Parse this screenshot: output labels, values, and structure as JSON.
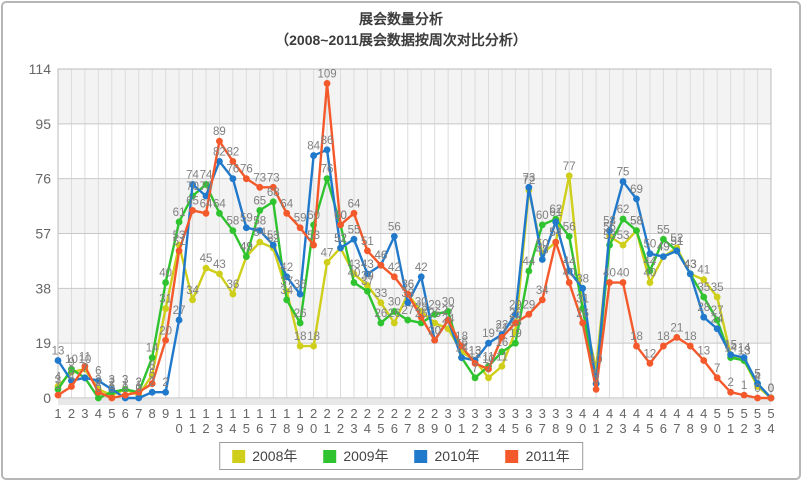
{
  "window": {
    "background": "#ffffff",
    "frame_border_color": "#b6b6b6"
  },
  "chart": {
    "title": "展会数量分析",
    "subtitle": "（2008~2011展会数据按周次对比分析）"
  },
  "chart_data": {
    "type": "line",
    "title": "展会数量分析",
    "subtitle": "（2008~2011展会数据按周次对比分析）",
    "xlabel": "",
    "ylabel": "",
    "x": [
      1,
      2,
      3,
      4,
      5,
      6,
      7,
      8,
      9,
      10,
      11,
      12,
      13,
      14,
      15,
      16,
      17,
      18,
      19,
      20,
      21,
      22,
      23,
      24,
      25,
      26,
      27,
      28,
      29,
      30,
      31,
      32,
      33,
      34,
      35,
      36,
      37,
      38,
      39,
      40,
      41,
      42,
      43,
      44,
      45,
      46,
      47,
      48,
      49,
      50,
      51,
      52,
      53,
      54
    ],
    "ylim": [
      0,
      114
    ],
    "y_ticks": [
      0,
      19,
      38,
      57,
      76,
      95,
      114
    ],
    "grid": true,
    "band_fill": "#f3f3f3",
    "gridline_color_v": "#dcdcdc",
    "gridline_color_h": "#c8c8c8",
    "axis_text_color": "#666666",
    "data_label_color": "#808080",
    "legend_position": "bottom",
    "series": [
      {
        "name": "2008年",
        "color": "#cfcf1b",
        "values": [
          4,
          9,
          10,
          3,
          1,
          3,
          1,
          8,
          31,
          53,
          34,
          45,
          43,
          36,
          49,
          54,
          52,
          37,
          18,
          18,
          47,
          52,
          43,
          39,
          33,
          26,
          36,
          30,
          26,
          24,
          16,
          13,
          7,
          11,
          23,
          72,
          50,
          54,
          77,
          31,
          10,
          56,
          53,
          58,
          40,
          49,
          52,
          43,
          41,
          35,
          15,
          13,
          4,
          0
        ]
      },
      {
        "name": "2009年",
        "color": "#2fc42f",
        "values": [
          3,
          10,
          7,
          0,
          2,
          3,
          2,
          14,
          40,
          61,
          70,
          74,
          64,
          58,
          49,
          65,
          68,
          34,
          26,
          60,
          76,
          60,
          40,
          37,
          26,
          30,
          27,
          26,
          29,
          30,
          14,
          7,
          11,
          16,
          19,
          44,
          60,
          62,
          56,
          31,
          5,
          53,
          62,
          58,
          44,
          55,
          51,
          43,
          35,
          27,
          14,
          13,
          5,
          0
        ]
      },
      {
        "name": "2010年",
        "color": "#2179cb",
        "values": [
          13,
          6,
          7,
          6,
          3,
          0,
          0,
          2,
          2,
          27,
          74,
          70,
          82,
          76,
          59,
          58,
          53,
          42,
          36,
          84,
          86,
          52,
          55,
          43,
          46,
          56,
          33,
          42,
          20,
          27,
          14,
          13,
          19,
          22,
          29,
          73,
          48,
          61,
          44,
          38,
          5,
          58,
          75,
          69,
          50,
          49,
          51,
          43,
          28,
          24,
          15,
          14,
          5,
          0
        ]
      },
      {
        "name": "2011年",
        "color": "#f4592b",
        "values": [
          1,
          4,
          11,
          2,
          0,
          1,
          2,
          5,
          20,
          51,
          65,
          64,
          89,
          82,
          76,
          73,
          73,
          64,
          59,
          53,
          109,
          60,
          64,
          51,
          46,
          42,
          36,
          28,
          20,
          27,
          18,
          12,
          10,
          21,
          26,
          29,
          34,
          54,
          40,
          26,
          3,
          40,
          40,
          18,
          12,
          18,
          21,
          18,
          13,
          7,
          2,
          1,
          0,
          0
        ]
      }
    ]
  }
}
